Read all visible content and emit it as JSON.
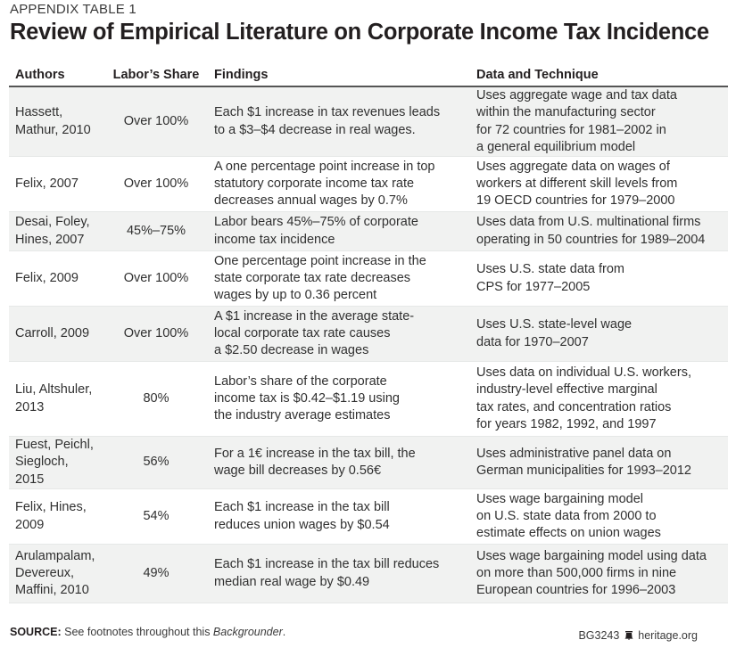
{
  "header": {
    "kicker": "APPENDIX TABLE 1",
    "title": "Review of Empirical Literature on Corporate Income Tax Incidence"
  },
  "table": {
    "columns": [
      "Authors",
      "Labor’s Share",
      "Findings",
      "Data and Technique"
    ],
    "rows": [
      {
        "authors": [
          "Hassett,",
          "Mathur, 2010"
        ],
        "share": "Over 100%",
        "findings": [
          "Each $1 increase in tax revenues leads",
          "to a $3–$4 decrease in real wages."
        ],
        "data": [
          "Uses aggregate wage and tax data",
          "within the manufacturing sector",
          "for 72 countries for 1981–2002 in",
          "a general equilibrium model"
        ]
      },
      {
        "authors": [
          "Felix, 2007"
        ],
        "share": "Over 100%",
        "findings": [
          "A one percentage point increase in top",
          "statutory corporate income tax rate",
          "decreases annual wages by 0.7%"
        ],
        "data": [
          "Uses aggregate data on wages of",
          "workers at different skill levels from",
          "19 OECD countries for 1979–2000"
        ]
      },
      {
        "authors": [
          "Desai, Foley,",
          "Hines, 2007"
        ],
        "share": "45%–75%",
        "findings": [
          "Labor bears 45%–75% of corporate",
          "income tax incidence"
        ],
        "data": [
          "Uses data from U.S. multinational firms",
          "operating in 50 countries for 1989–2004"
        ]
      },
      {
        "authors": [
          "Felix, 2009"
        ],
        "share": "Over 100%",
        "findings": [
          "One percentage point increase in the",
          "state corporate tax rate decreases",
          "wages by up to 0.36 percent"
        ],
        "data": [
          "Uses U.S. state data from",
          "CPS for 1977–2005"
        ]
      },
      {
        "authors": [
          "Carroll, 2009"
        ],
        "share": "Over 100%",
        "findings": [
          "A $1 increase in the average state-",
          "local corporate tax rate causes",
          "a $2.50 decrease in wages"
        ],
        "data": [
          "Uses U.S. state-level wage",
          "data for 1970–2007"
        ]
      },
      {
        "authors": [
          "Liu, Altshuler,",
          "2013"
        ],
        "share": "80%",
        "findings": [
          "Labor’s share of the corporate",
          "income tax is $0.42–$1.19 using",
          "the industry average estimates"
        ],
        "data": [
          "Uses data on individual U.S. workers,",
          "industry-level effective marginal",
          "tax rates, and concentration ratios",
          "for years 1982, 1992, and 1997"
        ]
      },
      {
        "authors": [
          "Fuest, Peichl,",
          "Siegloch, 2015"
        ],
        "share": "56%",
        "findings": [
          "For a 1€ increase in the tax bill, the",
          "wage bill decreases by 0.56€"
        ],
        "data": [
          "Uses administrative panel data on",
          "German municipalities for 1993–2012"
        ]
      },
      {
        "authors": [
          "Felix, Hines,",
          "2009"
        ],
        "share": "54%",
        "findings": [
          "Each $1 increase in the tax bill",
          "reduces union wages by $0.54"
        ],
        "data": [
          "Uses wage bargaining model",
          "on U.S. state data from 2000 to",
          "estimate effects on union wages"
        ]
      },
      {
        "authors": [
          "Arulampalam,",
          "Devereux,",
          "Maffini, 2010"
        ],
        "share": "49%",
        "findings": [
          "Each $1 increase in the tax bill reduces",
          "median real wage by $0.49"
        ],
        "data": [
          "Uses wage bargaining model using data",
          "on more than 500,000 firms in nine",
          "European countries for 1996–2003"
        ]
      }
    ]
  },
  "footer": {
    "source_label": "SOURCE:",
    "source_text": " See footnotes throughout this ",
    "source_italic": "Backgrounder",
    "source_end": ".",
    "code": "BG3243",
    "bell_icon": "liberty-bell-icon",
    "site": "heritage.org"
  },
  "colors": {
    "shaded_row": "#f1f2f1",
    "text": "#231f20",
    "rule": "#555555"
  }
}
